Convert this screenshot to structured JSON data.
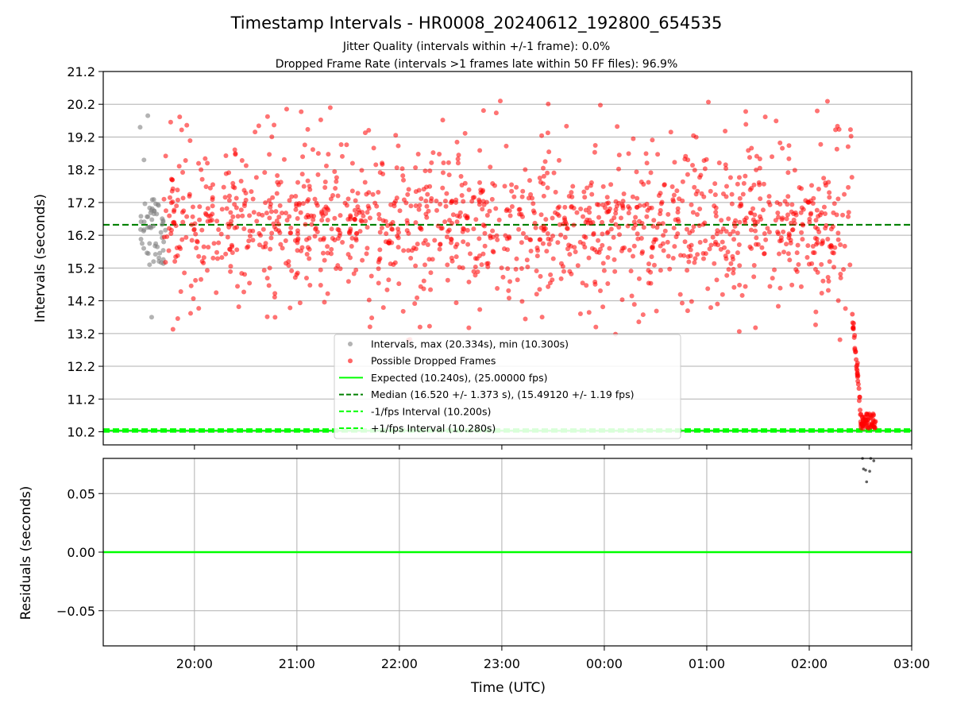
{
  "figure": {
    "title": "Timestamp Intervals - HR0008_20240612_192800_654535",
    "subtitle_lines": [
      "Jitter Quality (intervals within +/-1 frame): 0.0%",
      "Dropped Frame Rate (intervals >1 frames late within 50 FF files): 96.9%"
    ]
  },
  "chart_data": [
    {
      "type": "scatter",
      "panel": "intervals",
      "xlabel": "",
      "ylabel": "Intervals (seconds)",
      "x_ticks": [
        "20:00",
        "21:00",
        "22:00",
        "23:00",
        "00:00",
        "01:00",
        "02:00",
        "03:00"
      ],
      "x_tick_values_hours": [
        20,
        21,
        22,
        23,
        24,
        25,
        26,
        27
      ],
      "xlim_hours": [
        19.11,
        27.0
      ],
      "ylim": [
        9.8,
        21.2
      ],
      "y_ticks": [
        "10.2",
        "11.2",
        "12.2",
        "13.2",
        "14.2",
        "15.2",
        "16.2",
        "17.2",
        "18.2",
        "19.2",
        "20.2",
        "21.2"
      ],
      "y_tick_values": [
        10.2,
        11.2,
        12.2,
        13.2,
        14.2,
        15.2,
        16.2,
        17.2,
        18.2,
        19.2,
        20.2,
        21.2
      ],
      "grid": "horizontal",
      "legend_position": "lower-center",
      "series": [
        {
          "name": "Intervals, max (20.334s), min (10.300s)",
          "kind": "scatter",
          "color": "#808080",
          "x_range_hours": [
            19.47,
            19.72
          ],
          "y_typical_range": [
            15.3,
            17.3
          ],
          "y_outliers": [
            19.5,
            18.5,
            19.85,
            13.7
          ]
        },
        {
          "name": "Possible Dropped Frames",
          "kind": "scatter",
          "color": "#ff0000",
          "x_range_hours": [
            19.7,
            26.42
          ],
          "y_median": 16.52,
          "y_spread": 1.373,
          "y_range": [
            13.0,
            20.3
          ],
          "dropoff_x_range_hours": [
            26.42,
            26.65
          ],
          "dropoff_y_range": [
            10.3,
            13.8
          ]
        },
        {
          "name": "Expected (10.240s), (25.00000 fps)",
          "kind": "hline",
          "y": 10.24,
          "color": "#00ff00",
          "style": "solid"
        },
        {
          "name": "Median (16.520 +/- 1.373 s), (15.49120 +/- 1.19 fps)",
          "kind": "hline",
          "y": 16.52,
          "color": "#008000",
          "style": "dashed"
        },
        {
          "name": "-1/fps Interval (10.200s)",
          "kind": "hline",
          "y": 10.2,
          "color": "#00ff00",
          "style": "dashed"
        },
        {
          "name": "+1/fps Interval (10.280s)",
          "kind": "hline",
          "y": 10.28,
          "color": "#00ff00",
          "style": "dashed"
        }
      ]
    },
    {
      "type": "scatter",
      "panel": "residuals",
      "xlabel": "Time (UTC)",
      "ylabel": "Residuals (seconds)",
      "x_ticks": [
        "20:00",
        "21:00",
        "22:00",
        "23:00",
        "00:00",
        "01:00",
        "02:00",
        "03:00"
      ],
      "x_tick_values_hours": [
        20,
        21,
        22,
        23,
        24,
        25,
        26,
        27
      ],
      "xlim_hours": [
        19.11,
        27.0
      ],
      "ylim": [
        -0.08,
        0.08
      ],
      "y_ticks": [
        "0.05",
        "0.00",
        "−0.05"
      ],
      "y_tick_values": [
        0.05,
        0.0,
        -0.05
      ],
      "grid": "both",
      "series": [
        {
          "name": "",
          "kind": "hline",
          "y": 0.0,
          "color": "#00ff00",
          "style": "solid"
        },
        {
          "name": "",
          "kind": "scatter",
          "color": "#606060",
          "x": [
            26.52,
            26.53,
            26.56,
            26.59,
            26.63,
            26.55,
            26.6
          ],
          "y": [
            0.08,
            0.071,
            0.06,
            0.069,
            0.078,
            0.07,
            0.08
          ]
        }
      ]
    }
  ]
}
